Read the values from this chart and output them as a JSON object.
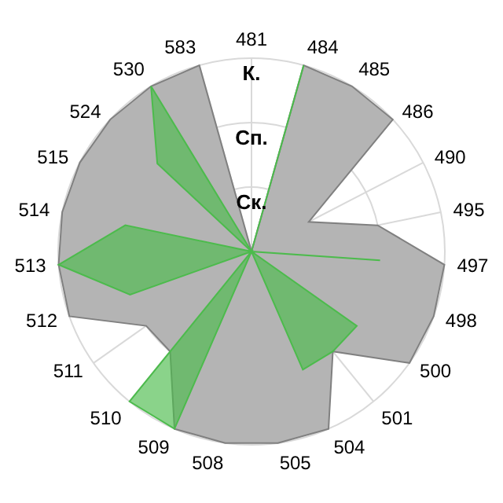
{
  "chart_data": {
    "type": "radar",
    "categories": [
      "481",
      "484",
      "485",
      "486",
      "490",
      "495",
      "497",
      "498",
      "500",
      "501",
      "504",
      "505",
      "508",
      "509",
      "510",
      "511",
      "512",
      "513",
      "514",
      "515",
      "524",
      "530",
      "583"
    ],
    "ylim": [
      0,
      3
    ],
    "yticks": [
      {
        "value": 1,
        "label": "Ск."
      },
      {
        "value": 2,
        "label": "Сп."
      },
      {
        "value": 3,
        "label": "К."
      }
    ],
    "grid": true,
    "legend": false,
    "series": [
      {
        "color": "#b4b4b4",
        "values": [
          0,
          3,
          3,
          3,
          1,
          2,
          3,
          3,
          3,
          2,
          3,
          3,
          3,
          3,
          2,
          2,
          3,
          3,
          3,
          3,
          3,
          3,
          3
        ]
      },
      {
        "color": "#4cbb4c",
        "values": [
          0,
          3,
          0,
          0,
          0,
          0,
          2,
          0,
          2,
          2,
          2,
          0,
          0,
          3,
          3,
          0,
          2,
          3,
          2,
          0,
          2,
          3,
          0
        ]
      }
    ]
  }
}
